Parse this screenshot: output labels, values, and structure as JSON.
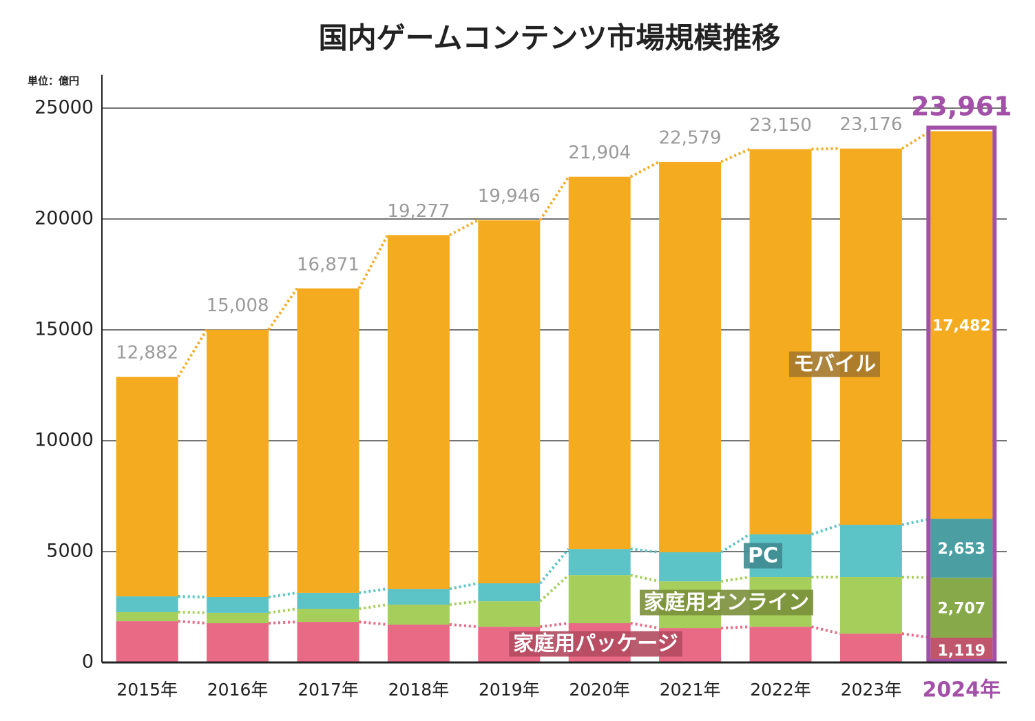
{
  "chart_data": {
    "type": "stacked-bar",
    "title": "国内ゲームコンテンツ市場規模推移",
    "unit_label": "単位：億円",
    "categories": [
      "2015年",
      "2016年",
      "2017年",
      "2018年",
      "2019年",
      "2020年",
      "2021年",
      "2022年",
      "2023年",
      "2024年"
    ],
    "series": [
      {
        "name": "家庭用パッケージ",
        "color": "#e96a84",
        "values": [
          1860,
          1770,
          1830,
          1710,
          1610,
          1770,
          1550,
          1610,
          1300,
          1119
        ],
        "value_labels": [
          null,
          null,
          null,
          null,
          null,
          null,
          null,
          null,
          null,
          "1,119"
        ]
      },
      {
        "name": "家庭用オンライン",
        "color": "#a5cf5a",
        "values": [
          410,
          470,
          590,
          900,
          1150,
          2170,
          2110,
          2240,
          2550,
          2707
        ],
        "value_labels": [
          null,
          null,
          null,
          null,
          null,
          null,
          null,
          null,
          null,
          "2,707"
        ]
      },
      {
        "name": "PC",
        "color": "#5cc3c6",
        "values": [
          710,
          710,
          720,
          710,
          810,
          1180,
          1310,
          1930,
          2360,
          2653
        ],
        "value_labels": [
          null,
          null,
          null,
          null,
          null,
          null,
          null,
          null,
          null,
          "2,653"
        ]
      },
      {
        "name": "モバイル",
        "color": "#f5ab1f",
        "values": [
          9902,
          12058,
          13731,
          15957,
          16376,
          16784,
          17609,
          17370,
          16966,
          17482
        ],
        "value_labels": [
          null,
          null,
          null,
          null,
          null,
          null,
          null,
          null,
          null,
          "17,482"
        ]
      }
    ],
    "totals": [
      12882,
      15008,
      16871,
      19277,
      19946,
      21904,
      22579,
      23150,
      23176,
      23961
    ],
    "total_labels": [
      "12,882",
      "15,008",
      "16,871",
      "19,277",
      "19,946",
      "21,904",
      "22,579",
      "23,150",
      "23,176",
      "23,961"
    ],
    "ylim": [
      0,
      26500
    ],
    "yticks": [
      0,
      5000,
      10000,
      15000,
      20000,
      25000
    ],
    "grid": true
  }
}
